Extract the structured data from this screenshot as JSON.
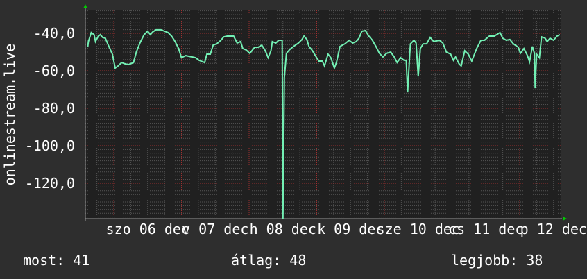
{
  "chart_data": {
    "type": "line",
    "ylabel": "onlinestream.live",
    "ylim": [
      -139,
      -28
    ],
    "y_ticks": [
      "-40,0",
      "-60,0",
      "-80,0",
      "-100,0",
      "-120,0"
    ],
    "y_tick_values": [
      -40,
      -60,
      -80,
      -100,
      -120
    ],
    "x_ticks": [
      "szo 06 dec",
      "v 07 dec",
      "h 08 dec",
      "k 09 dec",
      "sze 10 dec",
      "cs 11 dec",
      "p 12 dec"
    ],
    "grid": true,
    "line_color": "#73f0b4",
    "major_grid_color": "#a03030",
    "series": [
      {
        "points": [
          [
            "dec 05 14:45",
            -47.4
          ],
          [
            "dec 05 15:00",
            -44.4
          ],
          [
            "dec 05 16:00",
            -39.6
          ],
          [
            "dec 05 17:00",
            -40.7
          ],
          [
            "dec 05 17:30",
            -44.4
          ],
          [
            "dec 05 18:30",
            -41.5
          ],
          [
            "dec 05 19:15",
            -40.7
          ],
          [
            "dec 05 20:00",
            -42.2
          ],
          [
            "dec 05 21:00",
            -42.6
          ],
          [
            "dec 05 22:15",
            -47.0
          ],
          [
            "dec 05 23:30",
            -51.1
          ],
          [
            "dec 06 00:30",
            -58.5
          ],
          [
            "dec 06 01:30",
            -57.4
          ],
          [
            "dec 06 02:45",
            -55.6
          ],
          [
            "dec 06 04:00",
            -56.3
          ],
          [
            "dec 06 05:15",
            -56.7
          ],
          [
            "dec 06 07:00",
            -55.6
          ],
          [
            "dec 06 08:00",
            -50.0
          ],
          [
            "dec 06 09:15",
            -45.2
          ],
          [
            "dec 06 10:45",
            -40.7
          ],
          [
            "dec 06 12:00",
            -38.9
          ],
          [
            "dec 06 13:00",
            -40.7
          ],
          [
            "dec 06 13:45",
            -39.3
          ],
          [
            "dec 06 15:00",
            -38.1
          ],
          [
            "dec 06 16:45",
            -38.1
          ],
          [
            "dec 06 18:00",
            -38.9
          ],
          [
            "dec 06 19:15",
            -39.6
          ],
          [
            "dec 06 20:30",
            -41.5
          ],
          [
            "dec 06 21:45",
            -44.4
          ],
          [
            "dec 06 23:00",
            -48.1
          ],
          [
            "dec 07 00:00",
            -53.0
          ],
          [
            "dec 07 01:30",
            -51.9
          ],
          [
            "dec 07 03:45",
            -52.6
          ],
          [
            "dec 07 05:00",
            -53.0
          ],
          [
            "dec 07 06:15",
            -54.4
          ],
          [
            "dec 07 08:15",
            -55.6
          ],
          [
            "dec 07 09:00",
            -51.1
          ],
          [
            "dec 07 10:15",
            -51.1
          ],
          [
            "dec 07 11:15",
            -46.3
          ],
          [
            "dec 07 12:30",
            -45.6
          ],
          [
            "dec 07 14:00",
            -43.7
          ],
          [
            "dec 07 15:00",
            -41.9
          ],
          [
            "dec 07 16:15",
            -41.5
          ],
          [
            "dec 07 18:30",
            -41.5
          ],
          [
            "dec 07 19:45",
            -45.2
          ],
          [
            "dec 07 21:00",
            -44.4
          ],
          [
            "dec 07 21:45",
            -48.1
          ],
          [
            "dec 07 23:00",
            -48.9
          ],
          [
            "dec 08 00:15",
            -50.7
          ],
          [
            "dec 08 02:00",
            -47.4
          ],
          [
            "dec 08 03:15",
            -47.4
          ],
          [
            "dec 08 04:30",
            -46.3
          ],
          [
            "dec 08 05:45",
            -49.3
          ],
          [
            "dec 08 06:45",
            -53.0
          ],
          [
            "dec 08 07:45",
            -49.3
          ],
          [
            "dec 08 08:15",
            -44.4
          ],
          [
            "dec 08 09:30",
            -45.2
          ],
          [
            "dec 08 10:30",
            -43.7
          ],
          [
            "dec 08 11:45",
            -43.7
          ],
          [
            "dec 08 12:00",
            -138.9
          ],
          [
            "dec 08 12:30",
            -63.7
          ],
          [
            "dec 08 13:15",
            -50.7
          ],
          [
            "dec 08 14:15",
            -48.9
          ],
          [
            "dec 08 15:45",
            -47.0
          ],
          [
            "dec 08 17:30",
            -45.2
          ],
          [
            "dec 08 18:45",
            -43.3
          ],
          [
            "dec 08 19:30",
            -41.5
          ],
          [
            "dec 08 20:30",
            -43.3
          ],
          [
            "dec 08 21:15",
            -47.0
          ],
          [
            "dec 08 22:30",
            -49.3
          ],
          [
            "dec 08 23:30",
            -51.9
          ],
          [
            "dec 09 00:45",
            -54.8
          ],
          [
            "dec 09 02:00",
            -54.8
          ],
          [
            "dec 09 02:45",
            -57.4
          ],
          [
            "dec 09 04:00",
            -51.1
          ],
          [
            "dec 09 05:00",
            -53.0
          ],
          [
            "dec 09 06:15",
            -58.5
          ],
          [
            "dec 09 07:00",
            -55.6
          ],
          [
            "dec 09 08:15",
            -47.0
          ],
          [
            "dec 09 10:00",
            -45.6
          ],
          [
            "dec 09 11:30",
            -43.7
          ],
          [
            "dec 09 12:45",
            -45.2
          ],
          [
            "dec 09 14:00",
            -44.4
          ],
          [
            "dec 09 15:00",
            -42.6
          ],
          [
            "dec 09 16:00",
            -38.9
          ],
          [
            "dec 09 17:15",
            -38.5
          ],
          [
            "dec 09 18:30",
            -41.5
          ],
          [
            "dec 09 19:45",
            -43.7
          ],
          [
            "dec 09 21:00",
            -47.0
          ],
          [
            "dec 09 22:15",
            -50.7
          ],
          [
            "dec 09 23:30",
            -52.6
          ],
          [
            "dec 10 00:45",
            -50.7
          ],
          [
            "dec 10 02:15",
            -50.0
          ],
          [
            "dec 10 03:30",
            -52.6
          ],
          [
            "dec 10 04:30",
            -55.6
          ],
          [
            "dec 10 05:45",
            -53.0
          ],
          [
            "dec 10 07:00",
            -54.4
          ],
          [
            "dec 10 07:45",
            -54.4
          ],
          [
            "dec 10 08:15",
            -71.5
          ],
          [
            "dec 10 09:00",
            -50.7
          ],
          [
            "dec 10 09:15",
            -45.6
          ],
          [
            "dec 10 10:30",
            -43.7
          ],
          [
            "dec 10 11:15",
            -45.2
          ],
          [
            "dec 10 12:00",
            -63.0
          ],
          [
            "dec 10 12:45",
            -48.1
          ],
          [
            "dec 10 13:45",
            -45.6
          ],
          [
            "dec 10 15:00",
            -45.6
          ],
          [
            "dec 10 16:15",
            -42.2
          ],
          [
            "dec 10 17:30",
            -44.4
          ],
          [
            "dec 10 19:30",
            -43.7
          ],
          [
            "dec 10 20:45",
            -45.2
          ],
          [
            "dec 10 22:00",
            -50.0
          ],
          [
            "dec 10 23:30",
            -51.1
          ],
          [
            "dec 11 00:30",
            -54.4
          ],
          [
            "dec 11 01:15",
            -52.6
          ],
          [
            "dec 11 02:30",
            -56.3
          ],
          [
            "dec 11 03:15",
            -57.4
          ],
          [
            "dec 11 04:30",
            -49.3
          ],
          [
            "dec 11 05:45",
            -51.1
          ],
          [
            "dec 11 07:00",
            -54.8
          ],
          [
            "dec 11 08:45",
            -48.1
          ],
          [
            "dec 11 10:15",
            -43.7
          ],
          [
            "dec 11 11:30",
            -43.7
          ],
          [
            "dec 11 13:15",
            -41.5
          ],
          [
            "dec 11 15:00",
            -41.5
          ],
          [
            "dec 11 17:00",
            -39.6
          ],
          [
            "dec 11 18:00",
            -42.6
          ],
          [
            "dec 11 19:15",
            -43.7
          ],
          [
            "dec 11 20:30",
            -43.3
          ],
          [
            "dec 11 21:45",
            -45.6
          ],
          [
            "dec 11 23:30",
            -47.4
          ],
          [
            "dec 12 00:15",
            -50.7
          ],
          [
            "dec 12 01:30",
            -48.1
          ],
          [
            "dec 12 02:45",
            -51.9
          ],
          [
            "dec 12 03:30",
            -55.2
          ],
          [
            "dec 12 04:30",
            -47.0
          ],
          [
            "dec 12 05:15",
            -50.7
          ],
          [
            "dec 12 05:30",
            -69.3
          ],
          [
            "dec 12 06:00",
            -51.1
          ],
          [
            "dec 12 07:00",
            -53.0
          ],
          [
            "dec 12 07:45",
            -41.9
          ],
          [
            "dec 12 09:00",
            -42.6
          ],
          [
            "dec 12 09:45",
            -44.4
          ],
          [
            "dec 12 10:45",
            -42.6
          ],
          [
            "dec 12 12:00",
            -43.7
          ],
          [
            "dec 12 13:15",
            -41.5
          ],
          [
            "dec 12 14:15",
            -40.7
          ]
        ]
      }
    ]
  },
  "legend": {
    "current": "most: 41",
    "average": "átlag: 48",
    "best": "legjobb: 38"
  }
}
